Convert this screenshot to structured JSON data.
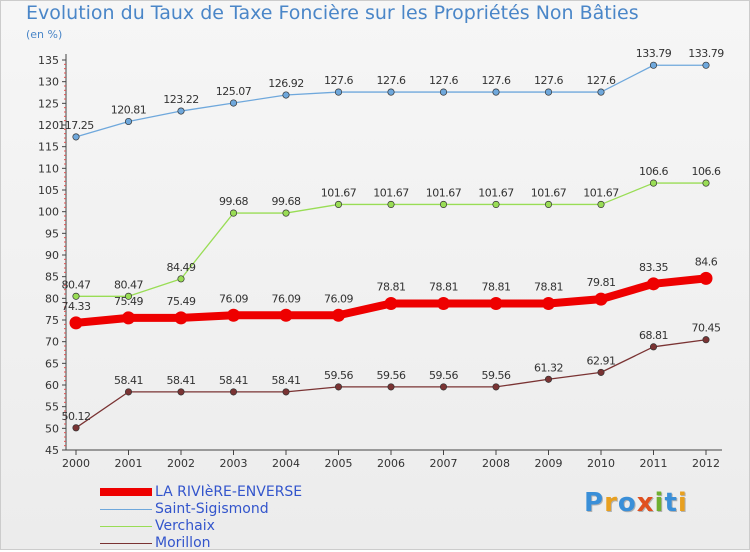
{
  "title": "Evolution du Taux de Taxe Foncière sur les Propriétés Non Bâties",
  "unit_label": "(en %)",
  "logo": {
    "text": "Proxiti",
    "colors": [
      "#3a8fd8",
      "#e8a020",
      "#3a8fd8",
      "#e05020",
      "#70b030",
      "#3a8fd8",
      "#e8a020"
    ]
  },
  "chart_data": {
    "type": "line",
    "title": "Evolution du Taux de Taxe Foncière sur les Propriétés Non Bâties",
    "ylabel": "(en %)",
    "xlabel": "",
    "ylim": [
      45,
      135
    ],
    "ytick_step": 5,
    "grid": false,
    "legend_position": "bottom-left",
    "x": [
      "2000",
      "2001",
      "2002",
      "2003",
      "2004",
      "2005",
      "2006",
      "2007",
      "2008",
      "2009",
      "2010",
      "2011",
      "2012"
    ],
    "series": [
      {
        "name": "LA RIVIèRE-ENVERSE",
        "color": "#ee0000",
        "values": [
          74.33,
          75.49,
          75.49,
          76.09,
          76.09,
          76.09,
          78.81,
          78.81,
          78.81,
          78.81,
          79.81,
          83.35,
          84.6
        ],
        "labels": [
          "74.33",
          "75.49",
          "75.49",
          "76.09",
          "76.09",
          "76.09",
          "78.81",
          "78.81",
          "78.81",
          "78.81",
          "79.81",
          "83.35",
          "84.6"
        ]
      },
      {
        "name": "Saint-Sigismond",
        "color": "#6fa8dc",
        "values": [
          117.25,
          120.81,
          123.22,
          125.07,
          126.92,
          127.6,
          127.6,
          127.6,
          127.6,
          127.6,
          127.6,
          133.79,
          133.79
        ],
        "labels": [
          "117.25",
          "120.81",
          "123.22",
          "125.07",
          "126.92",
          "127.6",
          "127.6",
          "127.6",
          "127.6",
          "127.6",
          "127.6",
          "133.79",
          "133.79"
        ]
      },
      {
        "name": "Verchaix",
        "color": "#99dd55",
        "values": [
          80.47,
          80.47,
          84.49,
          99.68,
          99.68,
          101.67,
          101.67,
          101.67,
          101.67,
          101.67,
          101.67,
          106.6,
          106.6
        ],
        "labels": [
          "80.47",
          "80.47",
          "84.49",
          "99.68",
          "99.68",
          "101.67",
          "101.67",
          "101.67",
          "101.67",
          "101.67",
          "101.67",
          "106.6",
          "106.6"
        ]
      },
      {
        "name": "Morillon",
        "color": "#7a3333",
        "values": [
          50.12,
          58.41,
          58.41,
          58.41,
          58.41,
          59.56,
          59.56,
          59.56,
          59.56,
          61.32,
          62.91,
          68.81,
          70.45
        ],
        "labels": [
          "50.12",
          "58.41",
          "58.41",
          "58.41",
          "58.41",
          "59.56",
          "59.56",
          "59.56",
          "59.56",
          "61.32",
          "62.91",
          "68.81",
          "70.45"
        ]
      }
    ]
  }
}
